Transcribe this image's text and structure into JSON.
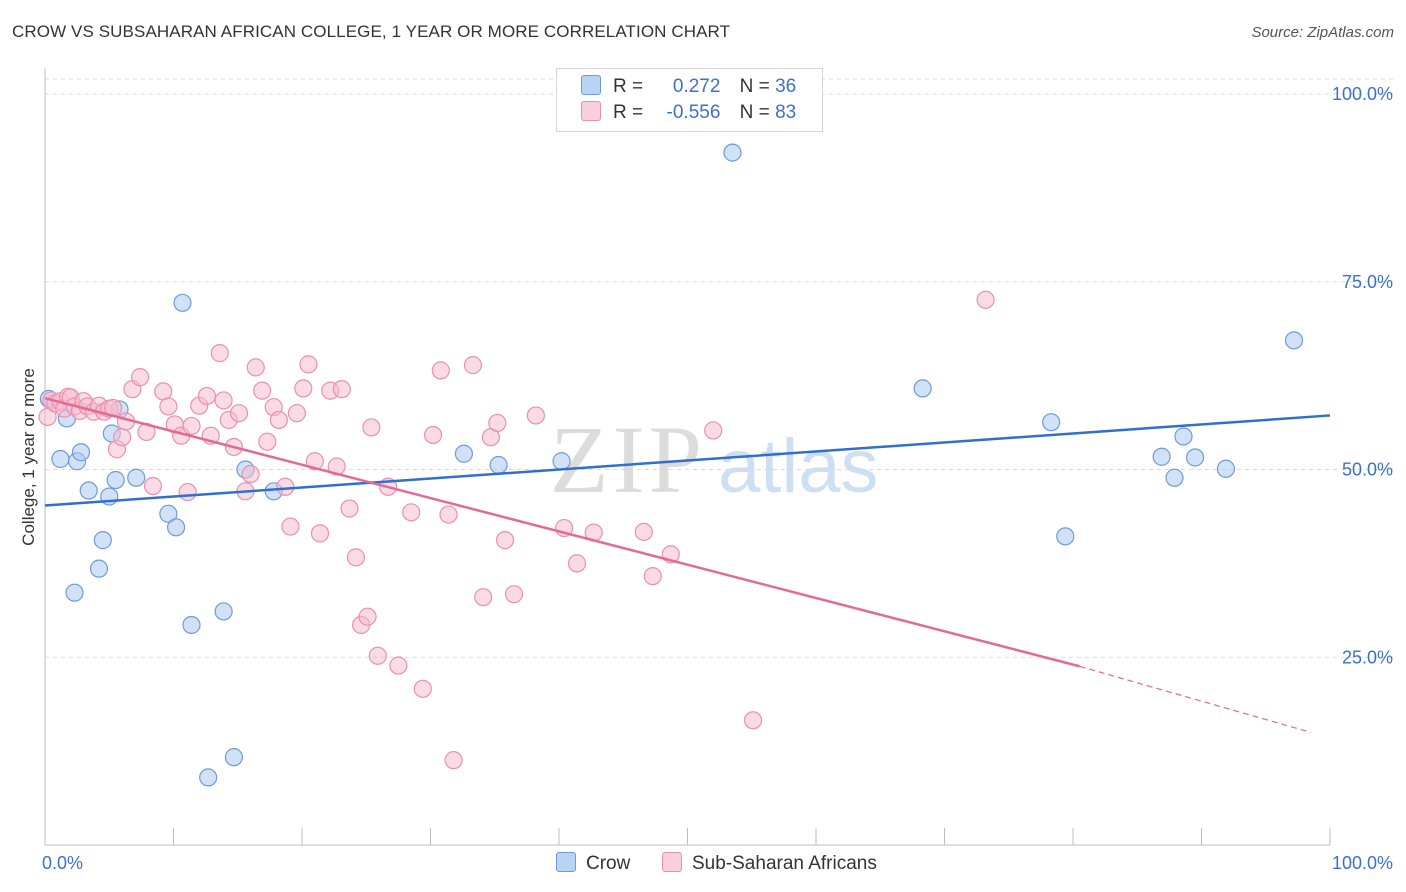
{
  "title": "CROW VS SUBSAHARAN AFRICAN COLLEGE, 1 YEAR OR MORE CORRELATION CHART",
  "source": "Source: ZipAtlas.com",
  "colors": {
    "crow_fill": "#aac8f2",
    "crow_stroke": "#6e9bd8",
    "crow_line": "#2f6fd0",
    "ssa_fill": "#f6bccd",
    "ssa_stroke": "#e891ad",
    "ssa_line": "#e36a96",
    "grid": "#d9d9d9",
    "tick_label": "#3b6fd1"
  },
  "legend": {
    "rows": [
      {
        "r_label": "R =",
        "r_value": "0.272",
        "n_label": "N =",
        "n_value": "36"
      },
      {
        "r_label": "R =",
        "r_value": "-0.556",
        "n_label": "N =",
        "n_value": "83"
      }
    ]
  },
  "bottom_legend": {
    "crow": "Crow",
    "ssa": "Sub-Saharan Africans"
  },
  "watermark": {
    "zip": "ZIP",
    "atlas": "atlas"
  },
  "chart_data": {
    "type": "scatter",
    "title": "CROW VS SUBSAHARAN AFRICAN COLLEGE, 1 YEAR OR MORE CORRELATION CHART",
    "xlabel": "",
    "ylabel": "College, 1 year or more",
    "xlim": [
      0,
      100
    ],
    "ylim": [
      0,
      102
    ],
    "x_tick_labels": {
      "left": "0.0%",
      "right": "100.0%"
    },
    "y_ticks": [
      {
        "value": 25,
        "label": "25.0%"
      },
      {
        "value": 50,
        "label": "50.0%"
      },
      {
        "value": 75,
        "label": "75.0%"
      },
      {
        "value": 100,
        "label": "100.0%"
      }
    ],
    "series": [
      {
        "name": "Crow",
        "trend": {
          "x0": 0,
          "y0": 45.2,
          "x1": 100,
          "y1": 57.2
        },
        "points": [
          [
            0.3,
            59.4
          ],
          [
            1.2,
            51.4
          ],
          [
            1.7,
            56.8
          ],
          [
            2.3,
            33.6
          ],
          [
            2.5,
            51.1
          ],
          [
            2.8,
            52.3
          ],
          [
            3.4,
            47.2
          ],
          [
            4.2,
            36.8
          ],
          [
            4.5,
            40.6
          ],
          [
            5.0,
            46.4
          ],
          [
            5.2,
            54.8
          ],
          [
            5.5,
            48.6
          ],
          [
            5.8,
            58.0
          ],
          [
            7.1,
            48.9
          ],
          [
            9.6,
            44.1
          ],
          [
            10.2,
            42.3
          ],
          [
            10.7,
            72.2
          ],
          [
            11.4,
            29.3
          ],
          [
            12.7,
            9.0
          ],
          [
            13.9,
            31.1
          ],
          [
            14.7,
            11.7
          ],
          [
            15.6,
            50.0
          ],
          [
            17.8,
            47.1
          ],
          [
            32.6,
            52.1
          ],
          [
            35.3,
            50.6
          ],
          [
            40.2,
            51.1
          ],
          [
            53.5,
            92.2
          ],
          [
            68.3,
            60.8
          ],
          [
            78.3,
            56.3
          ],
          [
            79.4,
            41.1
          ],
          [
            86.9,
            51.7
          ],
          [
            87.9,
            48.9
          ],
          [
            88.6,
            54.4
          ],
          [
            89.5,
            51.6
          ],
          [
            91.9,
            50.1
          ],
          [
            97.2,
            67.2
          ]
        ]
      },
      {
        "name": "Sub-Saharan Africans",
        "trend": {
          "x0": 0,
          "y0": 59.5,
          "x1": 80.5,
          "y1": 23.8,
          "dash_x1": 98.5,
          "dash_y1": 15.0
        },
        "points": [
          [
            0.2,
            57.0
          ],
          [
            0.5,
            59.2
          ],
          [
            0.8,
            58.8
          ],
          [
            1.2,
            59.1
          ],
          [
            1.5,
            58.1
          ],
          [
            1.8,
            59.7
          ],
          [
            2.0,
            59.6
          ],
          [
            2.3,
            58.4
          ],
          [
            2.7,
            57.8
          ],
          [
            3.0,
            59.1
          ],
          [
            3.3,
            58.4
          ],
          [
            3.8,
            57.7
          ],
          [
            4.2,
            58.5
          ],
          [
            4.6,
            57.7
          ],
          [
            5.0,
            58.1
          ],
          [
            5.3,
            58.2
          ],
          [
            5.6,
            52.7
          ],
          [
            6.0,
            54.3
          ],
          [
            6.3,
            56.4
          ],
          [
            6.8,
            60.7
          ],
          [
            7.4,
            62.3
          ],
          [
            7.9,
            55.0
          ],
          [
            8.4,
            47.8
          ],
          [
            9.2,
            60.4
          ],
          [
            9.6,
            58.4
          ],
          [
            10.1,
            56.0
          ],
          [
            10.6,
            54.5
          ],
          [
            11.1,
            47.0
          ],
          [
            11.4,
            55.8
          ],
          [
            12.0,
            58.5
          ],
          [
            12.6,
            59.8
          ],
          [
            12.9,
            54.5
          ],
          [
            13.6,
            65.5
          ],
          [
            13.9,
            59.2
          ],
          [
            14.3,
            56.6
          ],
          [
            14.7,
            53.0
          ],
          [
            15.1,
            57.5
          ],
          [
            15.6,
            47.1
          ],
          [
            16.0,
            49.4
          ],
          [
            16.4,
            63.6
          ],
          [
            16.9,
            60.5
          ],
          [
            17.3,
            53.7
          ],
          [
            17.8,
            58.3
          ],
          [
            18.2,
            56.6
          ],
          [
            18.7,
            47.7
          ],
          [
            19.1,
            42.4
          ],
          [
            19.6,
            57.5
          ],
          [
            20.1,
            60.8
          ],
          [
            20.5,
            64.0
          ],
          [
            21.0,
            51.1
          ],
          [
            21.4,
            41.5
          ],
          [
            22.2,
            60.5
          ],
          [
            22.7,
            50.4
          ],
          [
            23.1,
            60.7
          ],
          [
            23.7,
            44.8
          ],
          [
            24.2,
            38.3
          ],
          [
            24.6,
            29.3
          ],
          [
            25.1,
            30.4
          ],
          [
            25.4,
            55.6
          ],
          [
            25.9,
            25.2
          ],
          [
            26.7,
            47.7
          ],
          [
            27.5,
            23.9
          ],
          [
            28.5,
            44.3
          ],
          [
            29.4,
            20.8
          ],
          [
            30.2,
            54.6
          ],
          [
            30.8,
            63.2
          ],
          [
            31.4,
            44.0
          ],
          [
            31.8,
            11.3
          ],
          [
            33.3,
            63.9
          ],
          [
            34.1,
            33.0
          ],
          [
            34.7,
            54.3
          ],
          [
            35.2,
            56.2
          ],
          [
            35.8,
            40.6
          ],
          [
            36.5,
            33.4
          ],
          [
            38.2,
            57.2
          ],
          [
            40.4,
            42.2
          ],
          [
            41.4,
            37.5
          ],
          [
            42.7,
            41.6
          ],
          [
            46.6,
            41.7
          ],
          [
            47.3,
            35.8
          ],
          [
            48.7,
            38.7
          ],
          [
            52.0,
            55.2
          ],
          [
            55.1,
            16.6
          ],
          [
            73.2,
            72.6
          ]
        ]
      }
    ]
  }
}
